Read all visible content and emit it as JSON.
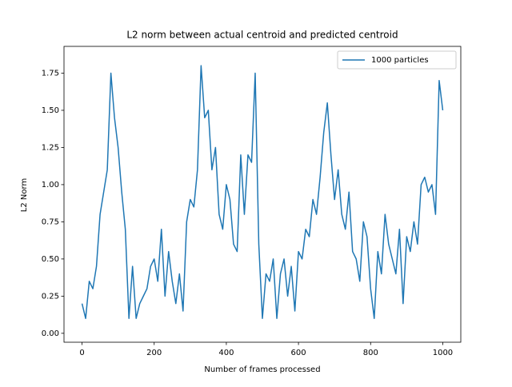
{
  "chart_data": {
    "type": "line",
    "title": "L2 norm between actual centroid and predicted centroid",
    "x_label": "Number of frames processed",
    "y_label": "L2 Norm",
    "x": [
      0,
      10,
      20,
      30,
      40,
      50,
      60,
      70,
      80,
      90,
      100,
      110,
      120,
      130,
      140,
      150,
      160,
      170,
      180,
      190,
      200,
      210,
      220,
      230,
      240,
      250,
      260,
      270,
      280,
      290,
      300,
      310,
      320,
      330,
      340,
      350,
      360,
      370,
      380,
      390,
      400,
      410,
      420,
      430,
      440,
      450,
      460,
      470,
      480,
      490,
      500,
      510,
      520,
      530,
      540,
      550,
      560,
      570,
      580,
      590,
      600,
      610,
      620,
      630,
      640,
      650,
      660,
      670,
      680,
      690,
      700,
      710,
      720,
      730,
      740,
      750,
      760,
      770,
      780,
      790,
      800,
      810,
      820,
      830,
      840,
      850,
      860,
      870,
      880,
      890,
      900,
      910,
      920,
      930,
      940,
      950,
      960,
      970,
      980,
      990,
      1000
    ],
    "series": [
      {
        "name": "1000 particles",
        "color": "#1f77b4",
        "values": [
          0.2,
          0.1,
          0.35,
          0.3,
          0.45,
          0.8,
          0.95,
          1.1,
          1.75,
          1.45,
          1.25,
          0.95,
          0.7,
          0.1,
          0.45,
          0.1,
          0.2,
          0.25,
          0.3,
          0.45,
          0.5,
          0.35,
          0.7,
          0.25,
          0.55,
          0.35,
          0.2,
          0.4,
          0.15,
          0.75,
          0.9,
          0.85,
          1.1,
          1.8,
          1.45,
          1.5,
          1.1,
          1.25,
          0.8,
          0.7,
          1.0,
          0.9,
          0.6,
          0.55,
          1.2,
          0.8,
          1.2,
          1.15,
          1.75,
          0.6,
          0.1,
          0.4,
          0.35,
          0.5,
          0.1,
          0.4,
          0.5,
          0.25,
          0.45,
          0.15,
          0.55,
          0.5,
          0.7,
          0.65,
          0.9,
          0.8,
          1.05,
          1.35,
          1.55,
          1.2,
          0.9,
          1.1,
          0.8,
          0.7,
          0.95,
          0.55,
          0.5,
          0.35,
          0.75,
          0.65,
          0.3,
          0.1,
          0.55,
          0.4,
          0.8,
          0.6,
          0.5,
          0.4,
          0.7,
          0.2,
          0.65,
          0.55,
          0.75,
          0.6,
          1.0,
          1.05,
          0.95,
          1.0,
          0.8,
          1.7,
          1.5
        ]
      }
    ],
    "xlim": [
      -50,
      1050
    ],
    "ylim": [
      -0.06,
      1.93
    ],
    "xticks": [
      0,
      200,
      400,
      600,
      800,
      1000
    ],
    "yticks": [
      {
        "value": 0,
        "label": "0.00"
      },
      {
        "value": 0.25,
        "label": "0.25"
      },
      {
        "value": 0.5,
        "label": "0.50"
      },
      {
        "value": 0.75,
        "label": "0.75"
      },
      {
        "value": 1,
        "label": "1.00"
      },
      {
        "value": 1.25,
        "label": "1.25"
      },
      {
        "value": 1.5,
        "label": "1.50"
      },
      {
        "value": 1.75,
        "label": "1.75"
      }
    ],
    "legend": "upper right"
  }
}
